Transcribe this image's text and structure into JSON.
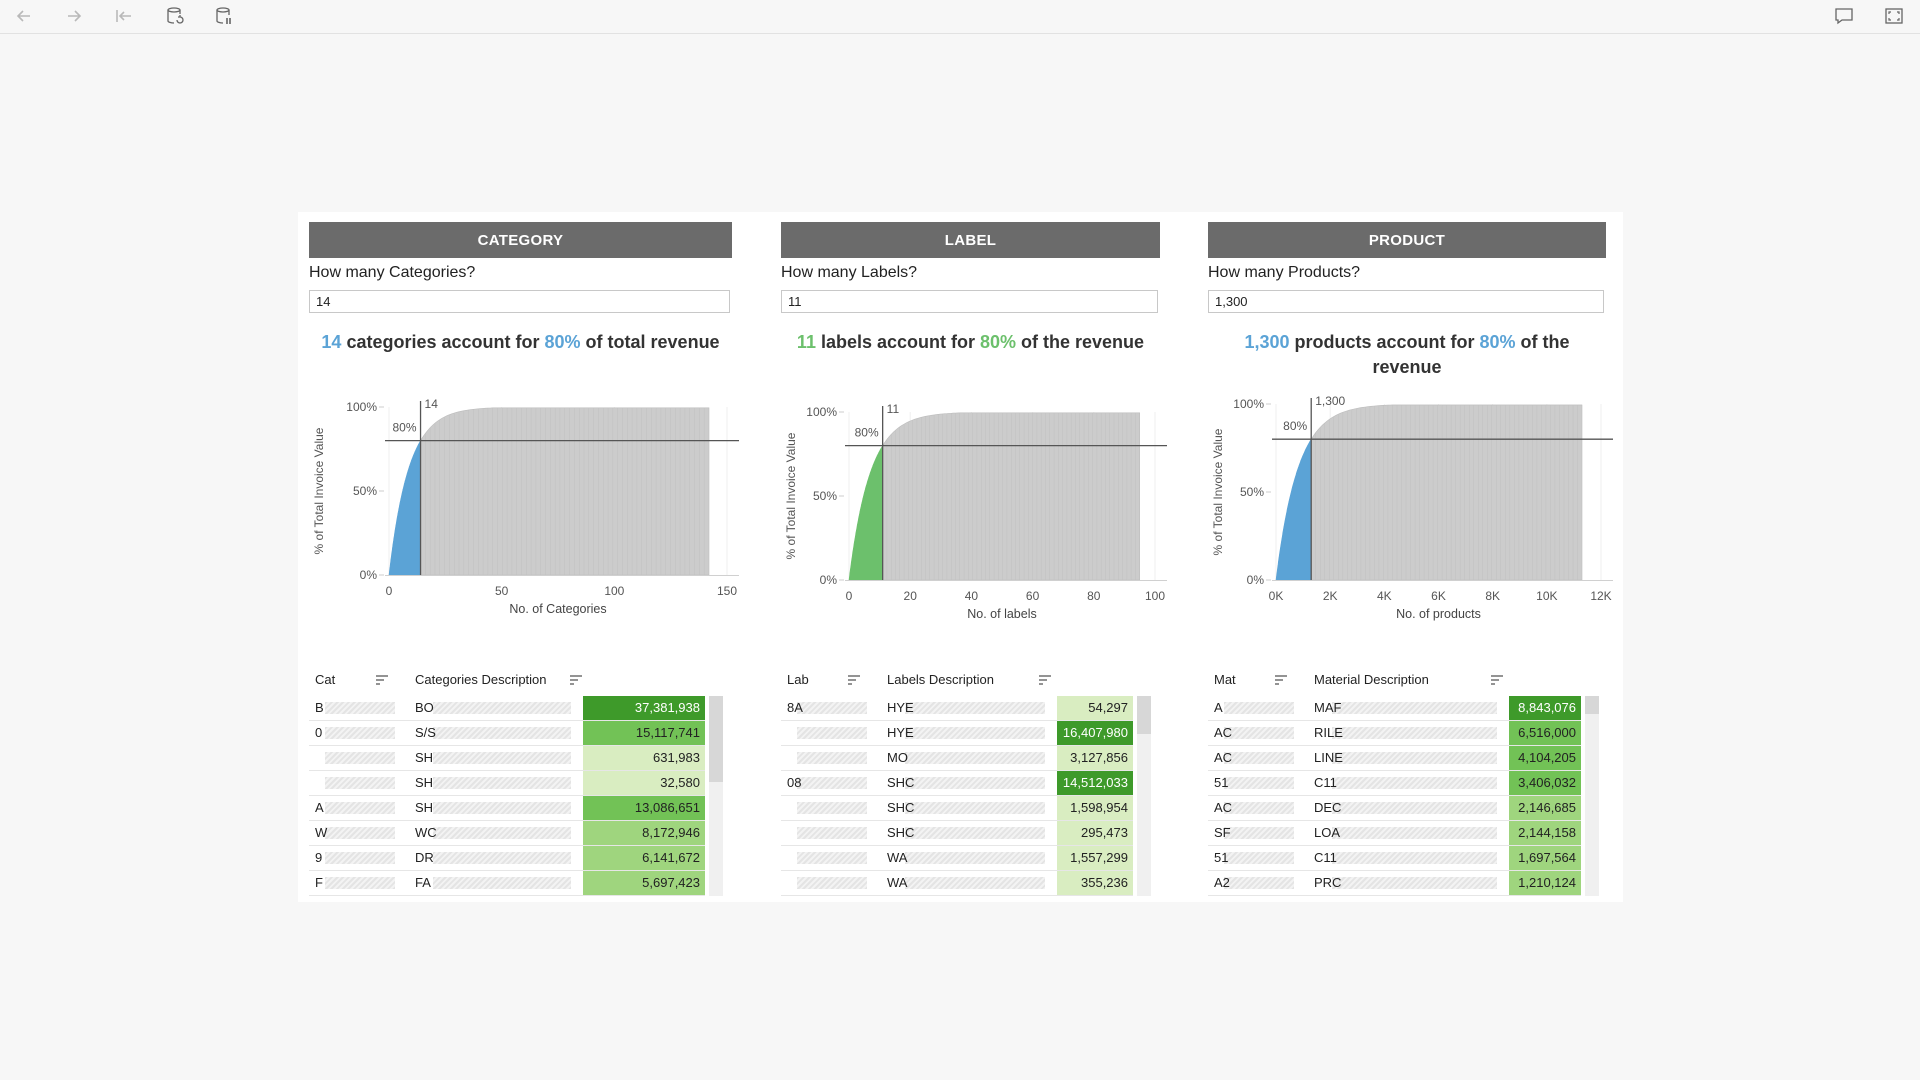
{
  "toolbar": {
    "icons": [
      "back-icon",
      "forward-icon",
      "first-icon",
      "refresh-data-icon",
      "pause-updates-icon",
      "comment-icon",
      "fullscreen-icon"
    ]
  },
  "colors": {
    "blue": "#5ba3d6",
    "green": "#6cc06c",
    "gray_area": "#c8c8c8",
    "title_bg": "#6b6b6b"
  },
  "panels": [
    {
      "key": "category",
      "title": "CATEGORY",
      "question": "How many Categories?",
      "input_value": "14",
      "headline_num": "14",
      "headline_mid": " categories account for ",
      "headline_pct": "80%",
      "headline_end": " of total revenue",
      "accent": "#5ba3d6",
      "chart_data": {
        "type": "area",
        "ylabel": "% of Total Invoice Value",
        "xlabel": "No. of  Categories",
        "ylim": [
          0,
          100
        ],
        "xlim": [
          0,
          150
        ],
        "yticks": [
          "0%",
          "50%",
          "80%",
          "100%"
        ],
        "xticks": [
          "0",
          "50",
          "100",
          "150"
        ],
        "xtick_values": [
          0,
          50,
          100,
          150
        ],
        "cutoff_x": 14,
        "cutoff_label": "14",
        "threshold_pct": 80,
        "threshold_label": "80%",
        "max_x": 142
      },
      "table": {
        "col1": "Cat",
        "col2": "Categories Description",
        "rows": [
          {
            "c1": "B",
            "c2": "BO",
            "v": "37,381,938",
            "shade": 4
          },
          {
            "c1": "0",
            "c2": "S/S",
            "v": "15,117,741",
            "shade": 3
          },
          {
            "c1": "",
            "c2": "SH",
            "v": "631,983",
            "shade": 1
          },
          {
            "c1": "",
            "c2": "SH",
            "v": "32,580",
            "shade": 1
          },
          {
            "c1": "A",
            "c2": "SH",
            "v": "13,086,651",
            "shade": 3
          },
          {
            "c1": "W",
            "c2": "WC",
            "v": "8,172,946",
            "shade": 2
          },
          {
            "c1": "9",
            "c2": "DR",
            "v": "6,141,672",
            "shade": 2
          },
          {
            "c1": "F",
            "c2": "FA",
            "v": "5,697,423",
            "shade": 2
          }
        ]
      }
    },
    {
      "key": "label",
      "title": "LABEL",
      "question": "How many Labels?",
      "input_value": "11",
      "headline_num": "11",
      "headline_mid": " labels account for ",
      "headline_pct": "80%",
      "headline_end": " of the revenue",
      "accent": "#6cc06c",
      "chart_data": {
        "type": "area",
        "ylabel": "% of Total Invoice Value",
        "xlabel": "No. of  labels",
        "ylim": [
          0,
          100
        ],
        "xlim": [
          0,
          100
        ],
        "yticks": [
          "0%",
          "50%",
          "80%",
          "100%"
        ],
        "xticks": [
          "0",
          "20",
          "40",
          "60",
          "80",
          "100"
        ],
        "xtick_values": [
          0,
          20,
          40,
          60,
          80,
          100
        ],
        "cutoff_x": 11,
        "cutoff_label": "11",
        "threshold_pct": 80,
        "threshold_label": "80%",
        "max_x": 95
      },
      "table": {
        "col1": "Lab",
        "col2": "Labels Description",
        "rows": [
          {
            "c1": "8A",
            "c2": "HYE",
            "v": "54,297",
            "shade": 1
          },
          {
            "c1": "",
            "c2": "HYE",
            "v": "16,407,980",
            "shade": 4
          },
          {
            "c1": "",
            "c2": "MO",
            "v": "3,127,856",
            "shade": 1
          },
          {
            "c1": "08",
            "c2": "SHC",
            "v": "14,512,033",
            "shade": 4
          },
          {
            "c1": "",
            "c2": "SHC",
            "v": "1,598,954",
            "shade": 1
          },
          {
            "c1": "",
            "c2": "SHC",
            "v": "295,473",
            "shade": 1
          },
          {
            "c1": "",
            "c2": "WA",
            "v": "1,557,299",
            "shade": 1
          },
          {
            "c1": "",
            "c2": "WA",
            "v": "355,236",
            "shade": 1
          }
        ]
      }
    },
    {
      "key": "product",
      "title": "PRODUCT",
      "question": "How many Products?",
      "input_value": "1,300",
      "headline_num": "1,300",
      "headline_mid": " products account for ",
      "headline_pct": "80%",
      "headline_end": " of the revenue",
      "accent": "#5ba3d6",
      "chart_data": {
        "type": "area",
        "ylabel": "% of Total Invoice Value",
        "xlabel": "No. of products",
        "ylim": [
          0,
          100
        ],
        "xlim": [
          0,
          12000
        ],
        "yticks": [
          "0%",
          "50%",
          "80%",
          "100%"
        ],
        "xticks": [
          "0K",
          "2K",
          "4K",
          "6K",
          "8K",
          "10K",
          "12K"
        ],
        "xtick_values": [
          0,
          2000,
          4000,
          6000,
          8000,
          10000,
          12000
        ],
        "cutoff_x": 1300,
        "cutoff_label": "1,300",
        "threshold_pct": 80,
        "threshold_label": "80%",
        "max_x": 11300
      },
      "table": {
        "col1": "Mat",
        "col2": "Material Description",
        "rows": [
          {
            "c1": "A",
            "c2": "MAF",
            "v": "8,843,076",
            "shade": 4
          },
          {
            "c1": "AC",
            "c2": "RILE",
            "v": "6,516,000",
            "shade": 3
          },
          {
            "c1": "AC",
            "c2": "LINE",
            "v": "4,104,205",
            "shade": 3
          },
          {
            "c1": "51",
            "c2": "C11",
            "v": "3,406,032",
            "shade": 3
          },
          {
            "c1": "AC",
            "c2": "DEC",
            "v": "2,146,685",
            "shade": 2
          },
          {
            "c1": "SF",
            "c2": "LOA",
            "v": "2,144,158",
            "shade": 2
          },
          {
            "c1": "51",
            "c2": "C11",
            "v": "1,697,564",
            "shade": 2
          },
          {
            "c1": "A2",
            "c2": "PRC",
            "v": "1,210,124",
            "shade": 2
          }
        ]
      }
    }
  ]
}
